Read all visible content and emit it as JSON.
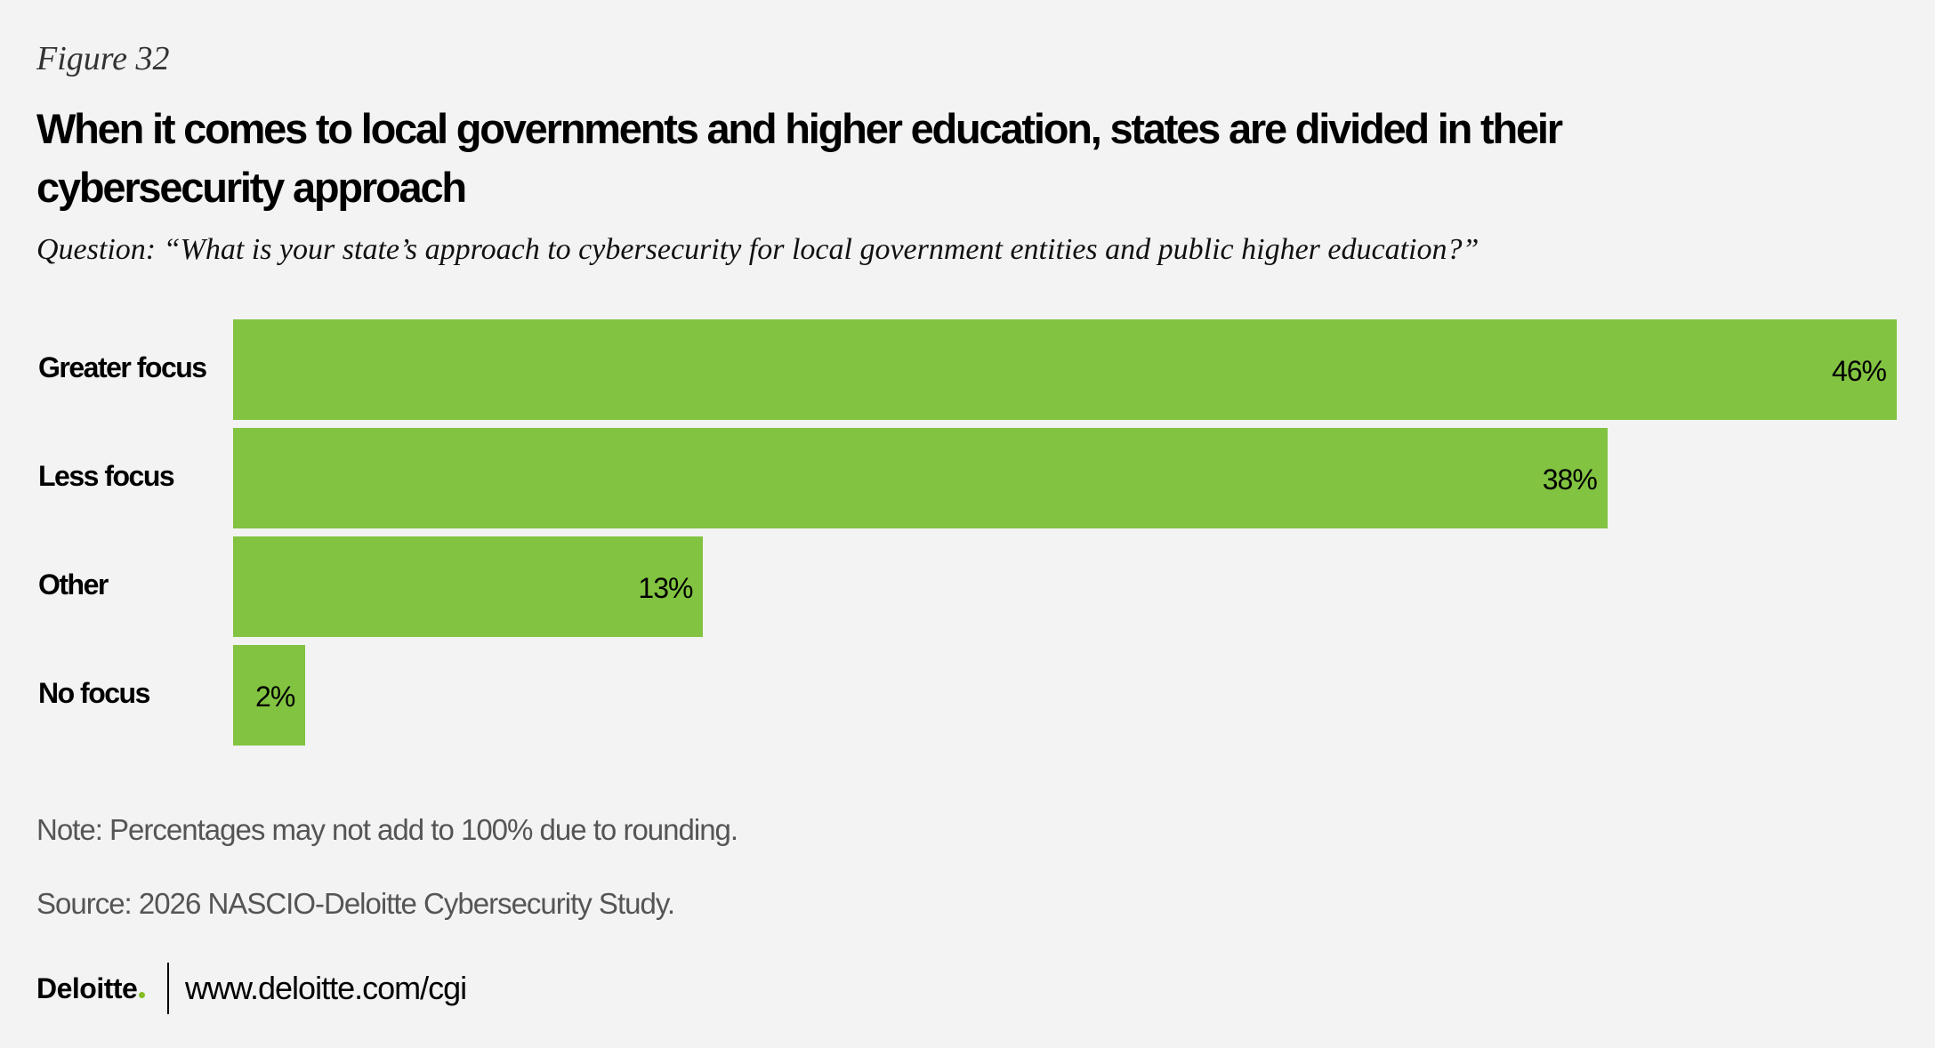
{
  "figure_label": "Figure 32",
  "chart_data": {
    "type": "bar",
    "orientation": "horizontal",
    "title": "When it comes to local governments and higher education, states are divided in their cybersecurity approach",
    "subtitle": "Question: “What is your state’s approach to cybersecurity for local government entities and public higher education?”",
    "categories": [
      "Greater focus",
      "Less focus",
      "Other",
      "No focus"
    ],
    "values": [
      46,
      38,
      13,
      2
    ],
    "value_labels": [
      "46%",
      "38%",
      "13%",
      "2%"
    ],
    "unit": "%",
    "xlim": [
      0,
      46
    ],
    "grid": false,
    "bar_color": "#82c341"
  },
  "note": "Note: Percentages may not add to 100% due to rounding.",
  "source": "Source: 2026 NASCIO-Deloitte Cybersecurity Study.",
  "footer": {
    "logo": "Deloitte",
    "url": "www.deloitte.com/cgi",
    "logo_dot_color": "#86bc25"
  }
}
